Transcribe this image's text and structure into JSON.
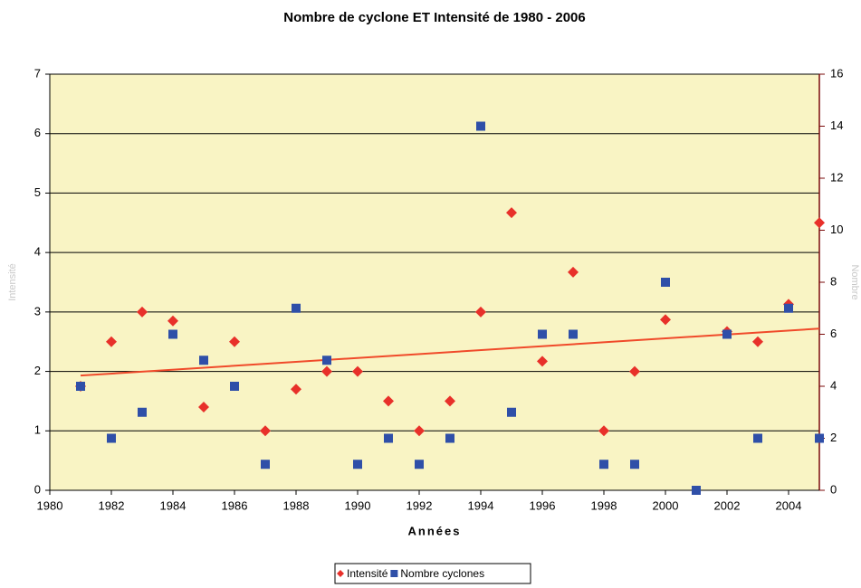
{
  "chart_data": {
    "type": "scatter",
    "title": "Nombre de cyclone ET Intensité de 1980 - 2006",
    "x_label": "Années",
    "y_label": "Intensité",
    "y2_label": "Nombre",
    "x": [
      1981,
      1982,
      1983,
      1984,
      1985,
      1986,
      1987,
      1988,
      1989,
      1990,
      1991,
      1992,
      1993,
      1994,
      1995,
      1996,
      1997,
      1998,
      1999,
      2000,
      2001,
      2002,
      2003,
      2004,
      2005
    ],
    "series": [
      {
        "name": "Intensité",
        "color": "#e8302a",
        "marker": "diamond",
        "values": [
          1.75,
          2.5,
          3.0,
          2.85,
          1.4,
          2.5,
          1.0,
          1.7,
          2.0,
          2.0,
          1.5,
          1.0,
          1.5,
          3.0,
          4.67,
          2.17,
          3.67,
          1.0,
          2.0,
          2.87,
          null,
          2.67,
          2.5,
          3.13,
          4.5
        ]
      },
      {
        "name": "Nombre cyclones",
        "color": "#2f4fa8",
        "marker": "square",
        "axis": "y2",
        "values": [
          4,
          2,
          3,
          6,
          5,
          4,
          1,
          7,
          5,
          1,
          2,
          1,
          2,
          14,
          3,
          6,
          6,
          1,
          1,
          8,
          0,
          6,
          2,
          7,
          2
        ]
      }
    ],
    "trendline": {
      "color": "#f04a2a",
      "x": [
        1981,
        2005
      ],
      "values": [
        1.93,
        2.72
      ]
    },
    "xlim": [
      1980,
      2005
    ],
    "xticks": [
      1980,
      1982,
      1984,
      1986,
      1988,
      1990,
      1992,
      1994,
      1996,
      1998,
      2000,
      2002,
      2004
    ],
    "ylim": [
      0,
      7
    ],
    "yticks": [
      0,
      1,
      2,
      3,
      4,
      5,
      6,
      7
    ],
    "y2lim": [
      0,
      16
    ],
    "y2ticks": [
      0,
      2,
      4,
      6,
      8,
      10,
      12,
      14,
      16
    ],
    "grid": true,
    "legend": "bottom"
  }
}
